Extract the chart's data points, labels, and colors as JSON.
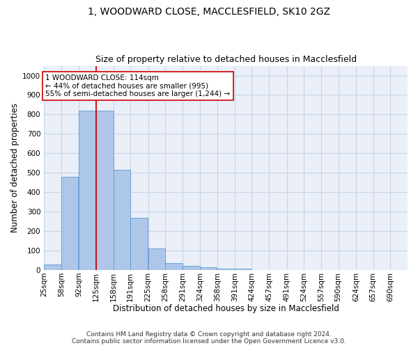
{
  "title1": "1, WOODWARD CLOSE, MACCLESFIELD, SK10 2GZ",
  "title2": "Size of property relative to detached houses in Macclesfield",
  "xlabel": "Distribution of detached houses by size in Macclesfield",
  "ylabel": "Number of detached properties",
  "footnote1": "Contains HM Land Registry data © Crown copyright and database right 2024.",
  "footnote2": "Contains public sector information licensed under the Open Government Licence v3.0.",
  "annotation_line1": "1 WOODWARD CLOSE: 114sqm",
  "annotation_line2": "← 44% of detached houses are smaller (995)",
  "annotation_line3": "55% of semi-detached houses are larger (1,244) →",
  "bin_edges": [
    25,
    58,
    92,
    125,
    158,
    191,
    225,
    258,
    291,
    324,
    358,
    391,
    424,
    457,
    491,
    524,
    557,
    590,
    624,
    657,
    690
  ],
  "bin_labels": [
    "25sqm",
    "58sqm",
    "92sqm",
    "125sqm",
    "158sqm",
    "191sqm",
    "225sqm",
    "258sqm",
    "291sqm",
    "324sqm",
    "358sqm",
    "391sqm",
    "424sqm",
    "457sqm",
    "491sqm",
    "524sqm",
    "557sqm",
    "590sqm",
    "624sqm",
    "657sqm",
    "690sqm"
  ],
  "bar_values": [
    30,
    480,
    820,
    820,
    515,
    268,
    110,
    37,
    22,
    15,
    8,
    8,
    0,
    0,
    0,
    0,
    0,
    0,
    0,
    0
  ],
  "bar_color": "#aec6e8",
  "bar_edge_color": "#5b9bd5",
  "red_line_x": 125,
  "ylim": [
    0,
    1050
  ],
  "yticks": [
    0,
    100,
    200,
    300,
    400,
    500,
    600,
    700,
    800,
    900,
    1000
  ],
  "grid_color": "#c8d4e8",
  "background_color": "#eaeff8",
  "annotation_box_facecolor": "white",
  "annotation_box_edgecolor": "#cc0000",
  "title1_fontsize": 10,
  "title2_fontsize": 9,
  "xlabel_fontsize": 8.5,
  "ylabel_fontsize": 8.5,
  "tick_fontsize": 7.5,
  "annotation_fontsize": 7.5,
  "footnote_fontsize": 6.5
}
